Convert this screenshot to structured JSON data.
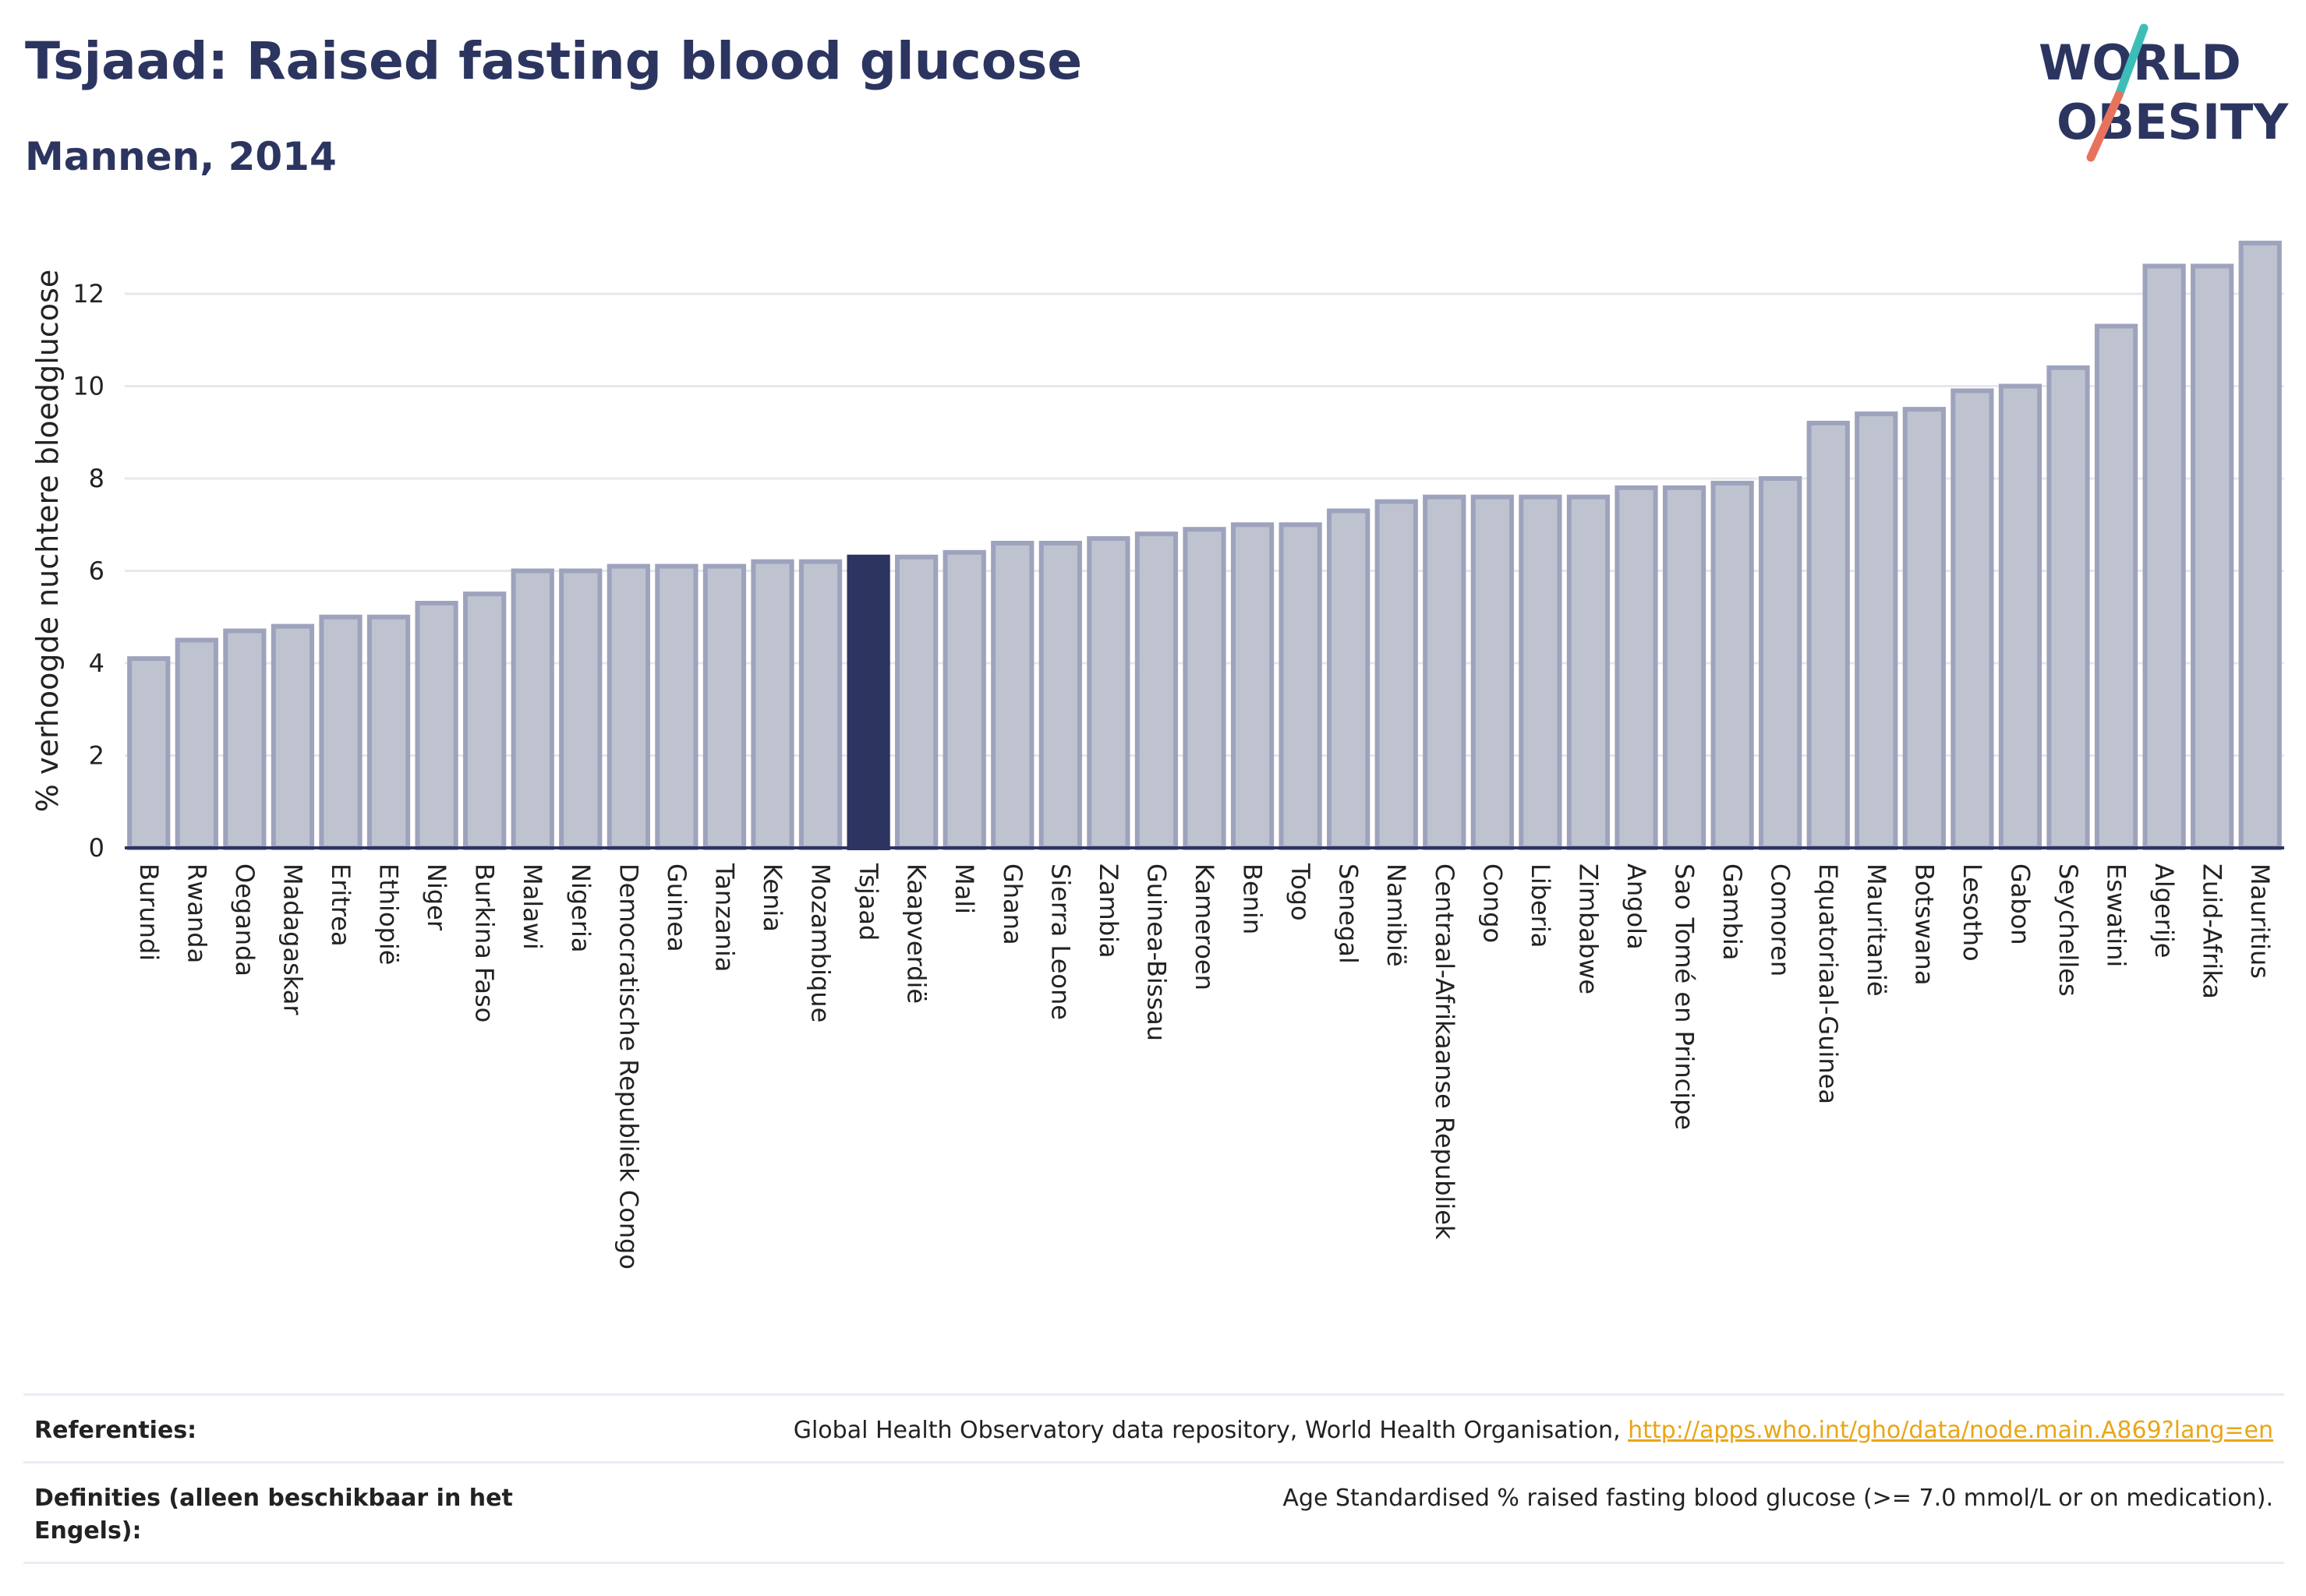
{
  "header": {
    "title": "Tsjaad: Raised fasting blood glucose",
    "subtitle": "Mannen, 2014"
  },
  "logo": {
    "line1": "WORLD",
    "line2": "OBESITY",
    "text_color": "#2c3560",
    "slash_top_color": "#3dbdb8",
    "slash_bottom_color": "#e8735c"
  },
  "colors": {
    "bar_fill": "#bfc3d0",
    "bar_stroke": "#9ea3bd",
    "highlight_fill": "#2c3560",
    "gridline": "#e6e8ee",
    "axis": "#2c3560"
  },
  "chart_data": {
    "type": "bar",
    "ylabel": "% verhoogde nuchtere bloedglucose",
    "ylim": [
      0,
      13.3
    ],
    "yticks": [
      0,
      2,
      4,
      6,
      8,
      10,
      12
    ],
    "grid": true,
    "highlight": "Tsjaad",
    "categories": [
      "Burundi",
      "Rwanda",
      "Oeganda",
      "Madagaskar",
      "Eritrea",
      "Ethiopië",
      "Niger",
      "Burkina Faso",
      "Malawi",
      "Nigeria",
      "Democratische Republiek Congo",
      "Guinea",
      "Tanzania",
      "Kenia",
      "Mozambique",
      "Tsjaad",
      "Kaapverdië",
      "Mali",
      "Ghana",
      "Sierra Leone",
      "Zambia",
      "Guinea-Bissau",
      "Kameroen",
      "Benin",
      "Togo",
      "Senegal",
      "Namibië",
      "Centraal-Afrikaanse Republiek",
      "Congo",
      "Liberia",
      "Zimbabwe",
      "Angola",
      "Sao Tomé en Principe",
      "Gambia",
      "Comoren",
      "Equatoriaal-Guinea",
      "Mauritanië",
      "Botswana",
      "Lesotho",
      "Gabon",
      "Seychelles",
      "Eswatini",
      "Algerije",
      "Zuid-Afrika",
      "Mauritius"
    ],
    "values": [
      4.1,
      4.5,
      4.7,
      4.8,
      5.0,
      5.0,
      5.3,
      5.5,
      6.0,
      6.0,
      6.1,
      6.1,
      6.1,
      6.2,
      6.2,
      6.3,
      6.3,
      6.4,
      6.6,
      6.6,
      6.7,
      6.8,
      6.9,
      7.0,
      7.0,
      7.3,
      7.5,
      7.6,
      7.6,
      7.6,
      7.6,
      7.8,
      7.8,
      7.9,
      8.0,
      9.2,
      9.4,
      9.5,
      9.9,
      10.0,
      10.4,
      11.3,
      12.6,
      12.6,
      13.1
    ]
  },
  "footer": {
    "references_label": "Referenties:",
    "references_text": "Global Health Observatory data repository, World Health Organisation, ",
    "references_link": "http://apps.who.int/gho/data/node.main.A869?lang=en",
    "definitions_label": "Definities (alleen beschikbaar in het Engels):",
    "definitions_text": "Age Standardised % raised fasting blood glucose (>= 7.0 mmol/L or on medication)."
  }
}
